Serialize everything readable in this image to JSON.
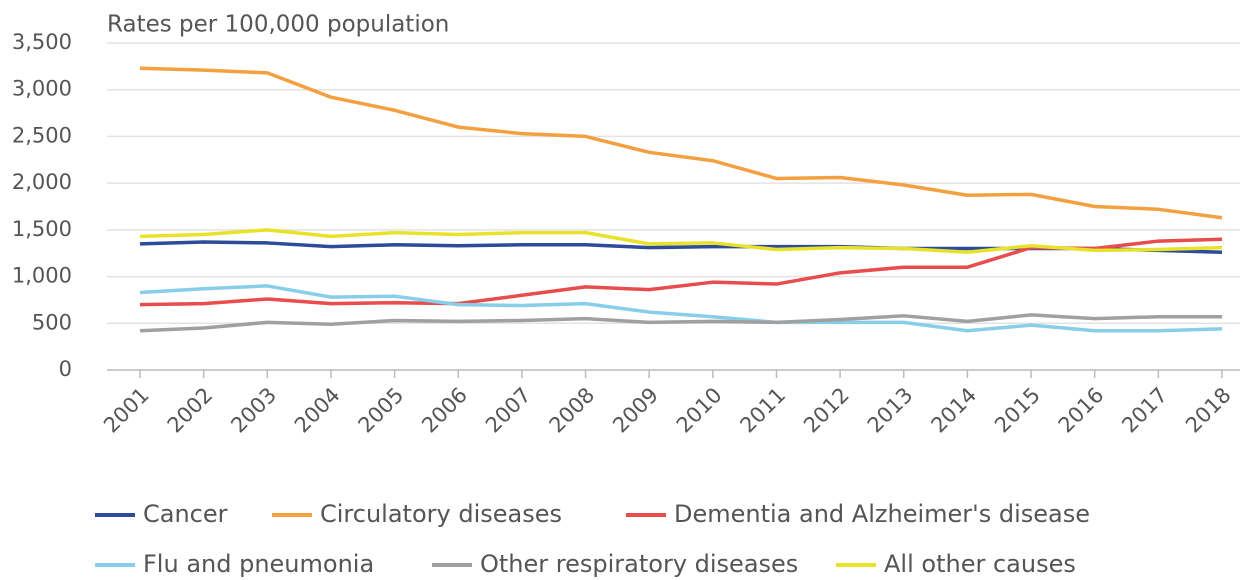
{
  "chart_data": {
    "type": "line",
    "title": "Rates per 100,000 population",
    "categories": [
      "2001",
      "2002",
      "2003",
      "2004",
      "2005",
      "2006",
      "2007",
      "2008",
      "2009",
      "2010",
      "2011",
      "2012",
      "2013",
      "2014",
      "2015",
      "2016",
      "2017",
      "2018"
    ],
    "series": [
      {
        "name": "Cancer",
        "color": "#2e4b9b",
        "values": [
          1350,
          1370,
          1360,
          1320,
          1340,
          1330,
          1340,
          1340,
          1310,
          1320,
          1320,
          1320,
          1300,
          1300,
          1300,
          1300,
          1280,
          1260
        ]
      },
      {
        "name": "Circulatory diseases",
        "color": "#f4a041",
        "values": [
          3230,
          3210,
          3180,
          2920,
          2780,
          2600,
          2530,
          2500,
          2330,
          2240,
          2050,
          2060,
          1980,
          1870,
          1880,
          1750,
          1720,
          1630
        ]
      },
      {
        "name": "Dementia and Alzheimer's disease",
        "color": "#e84c4c",
        "values": [
          700,
          710,
          760,
          710,
          720,
          710,
          800,
          890,
          860,
          940,
          920,
          1040,
          1100,
          1100,
          1310,
          1300,
          1380,
          1400
        ]
      },
      {
        "name": "Flu and pneumonia",
        "color": "#87ceeb",
        "values": [
          830,
          870,
          900,
          780,
          790,
          700,
          690,
          710,
          620,
          570,
          510,
          510,
          510,
          420,
          480,
          420,
          420,
          440
        ]
      },
      {
        "name": "Other respiratory diseases",
        "color": "#a0a0a0",
        "values": [
          420,
          450,
          510,
          490,
          530,
          520,
          530,
          550,
          510,
          520,
          510,
          540,
          580,
          520,
          590,
          550,
          570,
          570
        ]
      },
      {
        "name": "All other causes",
        "color": "#e8e22a",
        "values": [
          1430,
          1450,
          1500,
          1430,
          1470,
          1450,
          1470,
          1470,
          1350,
          1360,
          1290,
          1310,
          1300,
          1260,
          1330,
          1280,
          1290,
          1310
        ]
      }
    ],
    "ylim": [
      0,
      3500
    ],
    "yticks": [
      0,
      500,
      {
        "value": 1000,
        "label": "1,000"
      },
      {
        "value": 1500,
        "label": "1,500"
      },
      {
        "value": 2000,
        "label": "2,000"
      },
      {
        "value": 2500,
        "label": "2,500"
      },
      {
        "value": 3000,
        "label": "3,000"
      },
      {
        "value": 3500,
        "label": "3,500"
      }
    ],
    "grid": true
  }
}
